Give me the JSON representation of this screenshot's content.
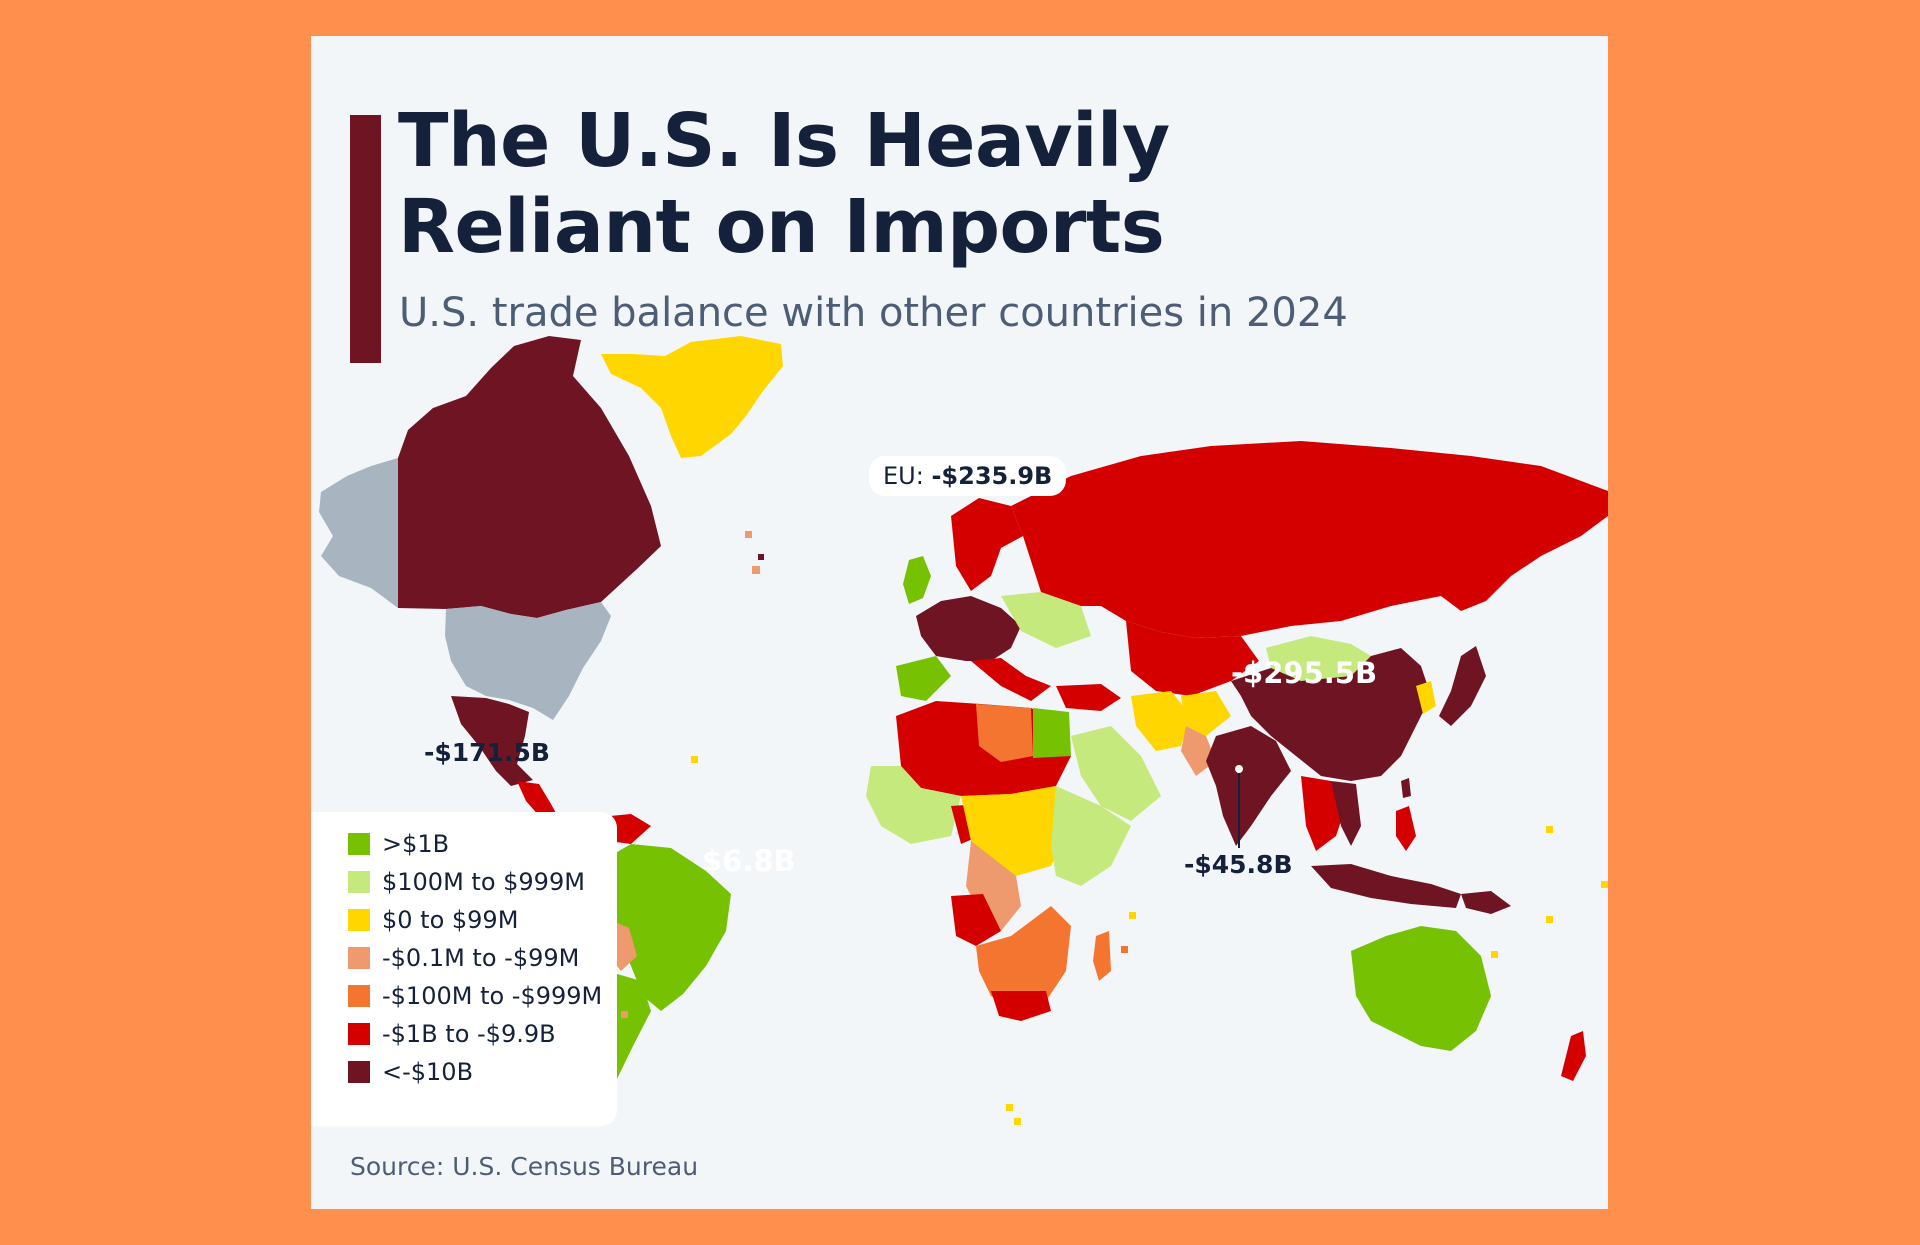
{
  "title": "The U.S. Is Heavily Reliant on Imports",
  "subtitle": "U.S. trade balance with other countries in 2024",
  "source": "Source: U.S. Census Bureau",
  "colors": {
    "gt_1b": "#76c101",
    "100m_999m": "#c5e97c",
    "0_99m": "#ffd600",
    "neg_0_1m_99m": "#ee9a6e",
    "neg_100m_999m": "#f47530",
    "neg_1b_9_9b": "#d40000",
    "lt_neg_10b": "#6e1423",
    "usa": "#a8b4bf",
    "ocean": "#f3f6f9"
  },
  "legend": [
    {
      "label": ">$1B",
      "color": "#76c101"
    },
    {
      "label": "$100M to $999M",
      "color": "#c5e97c"
    },
    {
      "label": "$0 to $99M",
      "color": "#ffd600"
    },
    {
      "label": "-$0.1M to -$99M",
      "color": "#ee9a6e"
    },
    {
      "label": "-$100M to -$999M",
      "color": "#f47530"
    },
    {
      "label": "-$1B to -$9.9B",
      "color": "#d40000"
    },
    {
      "label": "<-$10B",
      "color": "#6e1423"
    }
  ],
  "annotations": {
    "eu": {
      "prefix": "EU: ",
      "value": "-$235.9B"
    },
    "china": "-$295.5B",
    "mexico": "-$171.5B",
    "brazil": "$6.8B",
    "india": "-$45.8B"
  }
}
